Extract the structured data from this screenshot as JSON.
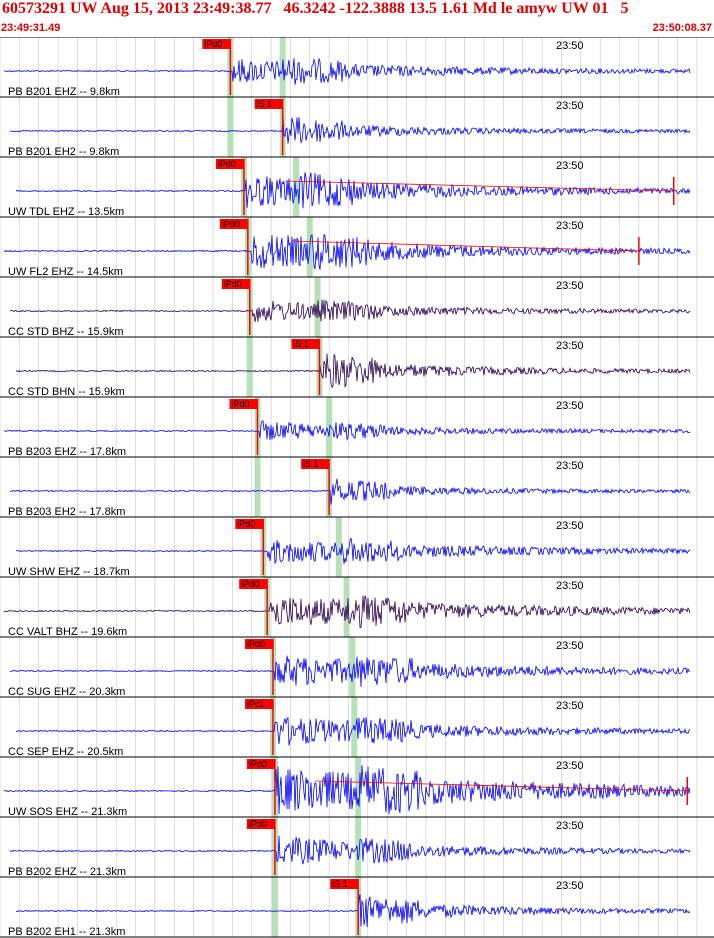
{
  "header": {
    "title": "60573291 UW Aug 15, 2013 23:49:38.77   46.3242 -122.3888 13.5 1.61 Md le amyw UW 01   5",
    "start_time": "23:49:31.49",
    "end_time": "23:50:08.37"
  },
  "colors": {
    "trace_blue": "#0000ff",
    "trace_dark": "#2a0050",
    "pick_red": "#ff0000",
    "band_green": "#b6e0b6",
    "title_red": "#e00000"
  },
  "chart_data": {
    "type": "line",
    "title": "60573291 UW Aug 15, 2013 23:49:38.77   46.3242 -122.3888 13.5 1.61 Md le amyw UW 01   5",
    "xlim": [
      "23:49:31.49",
      "23:50:08.37"
    ],
    "minute_tick": "23:50",
    "grid": true,
    "traces": [
      {
        "label": "PB B201 EHZ -- 9.8km",
        "color": "#0000ff",
        "pick": "iPd0",
        "p_time": 11.9,
        "s_time": 14.6,
        "amp": 0.45,
        "onset": 12.0,
        "decay": 8,
        "code_end": 0
      },
      {
        "label": "PB B201 EH2 -- 9.8km",
        "color": "#0000ff",
        "pick": "iS 1",
        "p_time": 11.9,
        "s_time": 14.6,
        "amp": 0.35,
        "onset": 14.6,
        "decay": 6,
        "code_end": 0
      },
      {
        "label": "UW TDL EHZ -- 13.5km",
        "color": "#0000ff",
        "pick": "iPd0",
        "p_time": 12.6,
        "s_time": 15.3,
        "amp": 0.6,
        "onset": 12.7,
        "decay": 9,
        "code_end": 34.8
      },
      {
        "label": "UW FL2 EHZ -- 14.5km",
        "color": "#0000ff",
        "pick": "iPd0",
        "p_time": 12.8,
        "s_time": 16.0,
        "amp": 0.7,
        "onset": 13.0,
        "decay": 8,
        "code_end": 33.0
      },
      {
        "label": "CC STD BHZ -- 15.9km",
        "color": "#2a0050",
        "pick": "iPd0",
        "p_time": 12.9,
        "s_time": 16.4,
        "amp": 0.4,
        "onset": 13.0,
        "decay": 7,
        "code_end": 0
      },
      {
        "label": "CC STD BHN -- 15.9km",
        "color": "#2a0050",
        "pick": "iS 1",
        "p_time": 12.9,
        "s_time": 16.5,
        "amp": 0.45,
        "onset": 16.5,
        "decay": 6,
        "code_end": 0
      },
      {
        "label": "PB B203 EHZ -- 17.8km",
        "color": "#0000ff",
        "pick": "iPd0",
        "p_time": 13.3,
        "s_time": 17.0,
        "amp": 0.35,
        "onset": 13.4,
        "decay": 6,
        "code_end": 0
      },
      {
        "label": "PB B203 EH2 -- 17.8km",
        "color": "#0000ff",
        "pick": "iS 1",
        "p_time": 13.3,
        "s_time": 17.0,
        "amp": 0.3,
        "onset": 17.0,
        "decay": 5,
        "code_end": 0
      },
      {
        "label": "UW SHW EHZ -- 18.7km",
        "color": "#0000ff",
        "pick": "iPd0",
        "p_time": 13.6,
        "s_time": 17.5,
        "amp": 0.45,
        "onset": 13.8,
        "decay": 9,
        "code_end": 0
      },
      {
        "label": "CC VALT BHZ -- 19.6km",
        "color": "#2a0050",
        "pick": "iPd0",
        "p_time": 13.8,
        "s_time": 17.9,
        "amp": 0.6,
        "onset": 13.9,
        "decay": 10,
        "code_end": 0
      },
      {
        "label": "CC SUG EHZ -- 20.3km",
        "color": "#0000ff",
        "pick": "iPd0",
        "p_time": 14.1,
        "s_time": 18.2,
        "amp": 0.6,
        "onset": 14.2,
        "decay": 9,
        "code_end": 0
      },
      {
        "label": "CC SEP EHZ -- 20.5km",
        "color": "#0000ff",
        "pick": "iPc1",
        "p_time": 14.1,
        "s_time": 18.3,
        "amp": 0.55,
        "onset": 14.2,
        "decay": 8,
        "code_end": 0
      },
      {
        "label": "UW SOS EHZ -- 21.3km",
        "color": "#0000ff",
        "pick": "iPd0",
        "p_time": 14.2,
        "s_time": 18.5,
        "amp": 0.9,
        "onset": 14.2,
        "decay": 12,
        "code_end": 35.5
      },
      {
        "label": "PB B202 EHZ -- 21.3km",
        "color": "#0000ff",
        "pick": "iPd0",
        "p_time": 14.2,
        "s_time": 18.5,
        "amp": 0.55,
        "onset": 14.3,
        "decay": 7,
        "code_end": 0
      },
      {
        "label": "PB B202 EH1 -- 21.3km",
        "color": "#0000ff",
        "pick": "iS 1",
        "p_time": 14.2,
        "s_time": 18.5,
        "amp": 0.4,
        "onset": 18.5,
        "decay": 6,
        "code_end": 0
      }
    ]
  }
}
